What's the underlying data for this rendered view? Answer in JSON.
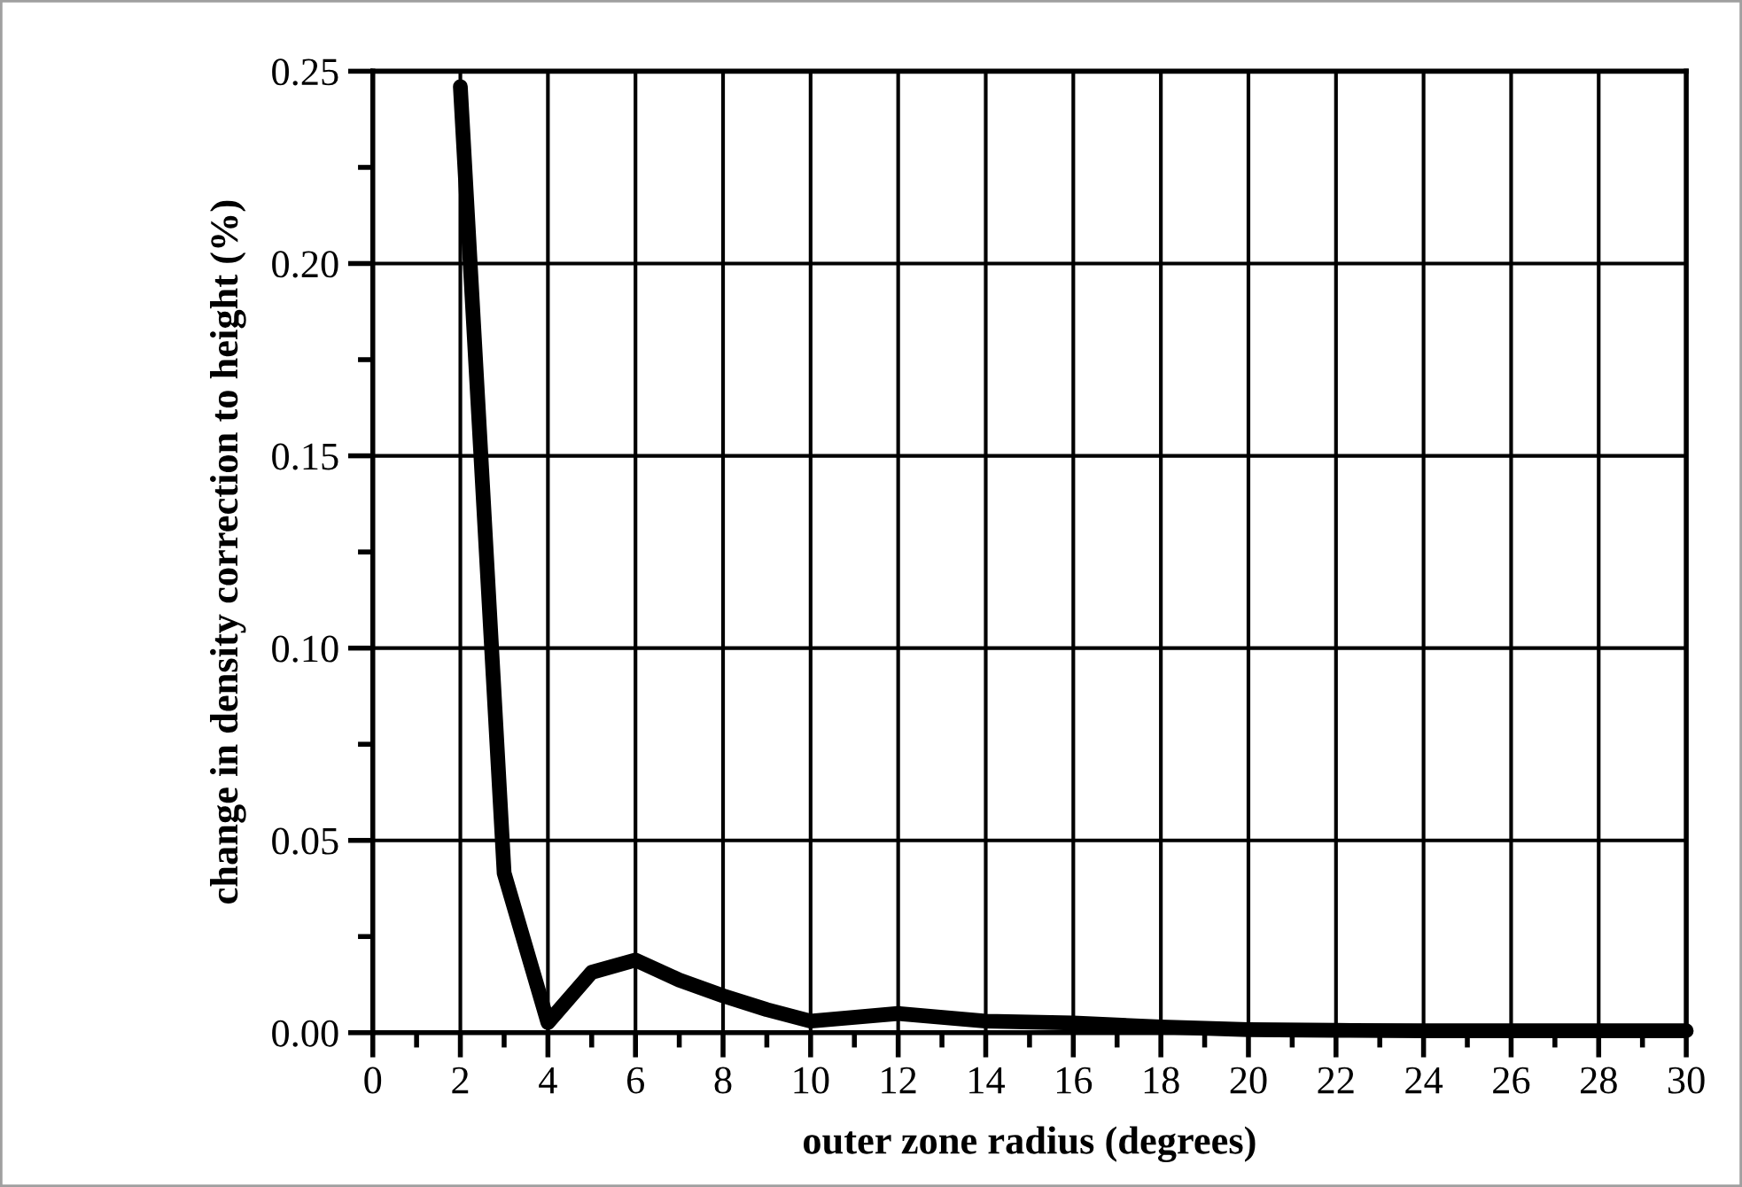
{
  "chart_data": {
    "type": "line",
    "xlabel": "outer zone radius (degrees)",
    "ylabel": "change in density correction to height (%)",
    "x": [
      2,
      3,
      4,
      5,
      6,
      7,
      8,
      9,
      10,
      12,
      14,
      16,
      18,
      20,
      22,
      24,
      26,
      28,
      30
    ],
    "series": [
      {
        "color": "#000000",
        "values": [
          0.246,
          0.0415,
          0.0026,
          0.0157,
          0.0189,
          0.0137,
          0.0096,
          0.006,
          0.003,
          0.005,
          0.003,
          0.0025,
          0.0015,
          0.0008,
          0.0006,
          0.0005,
          0.0005,
          0.0005,
          0.0005
        ]
      }
    ],
    "xlim": [
      0,
      30
    ],
    "xticks": [
      0,
      {
        "value": 1,
        "label": null
      },
      2,
      {
        "value": 3,
        "label": null
      },
      4,
      {
        "value": 5,
        "label": null
      },
      6,
      {
        "value": 7,
        "label": null
      },
      8,
      {
        "value": 9,
        "label": null
      },
      10,
      {
        "value": 11,
        "label": null
      },
      12,
      {
        "value": 13,
        "label": null
      },
      14,
      {
        "value": 15,
        "label": null
      },
      16,
      {
        "value": 17,
        "label": null
      },
      18,
      {
        "value": 19,
        "label": null
      },
      20,
      {
        "value": 21,
        "label": null
      },
      22,
      {
        "value": 23,
        "label": null
      },
      24,
      {
        "value": 25,
        "label": null
      },
      26,
      {
        "value": 27,
        "label": null
      },
      28,
      {
        "value": 29,
        "label": null
      },
      30
    ],
    "ylim": [
      0,
      0.25
    ],
    "yticks": [
      {
        "value": 0,
        "label": "0.00"
      },
      {
        "value": 0.025,
        "label": null
      },
      {
        "value": 0.05,
        "label": "0.05"
      },
      {
        "value": 0.075,
        "label": null
      },
      {
        "value": 0.1,
        "label": "0.10"
      },
      {
        "value": 0.125,
        "label": null
      },
      {
        "value": 0.15,
        "label": "0.15"
      },
      {
        "value": 0.175,
        "label": null
      },
      {
        "value": 0.2,
        "label": "0.20"
      },
      {
        "value": 0.225,
        "label": null
      },
      {
        "value": 0.25,
        "label": "0.25"
      }
    ],
    "grid": true,
    "marker": "none",
    "line_style": "solid",
    "legend": false
  }
}
